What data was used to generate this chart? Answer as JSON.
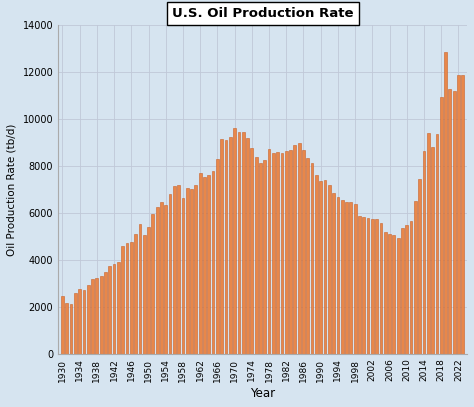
{
  "title": "U.S. Oil Production Rate",
  "xlabel": "Year",
  "ylabel": "Oil Production Rate (tb/d)",
  "bar_color": "#E8874A",
  "edge_color": "#C8622A",
  "bg_color": "#D6E4F0",
  "grid_color": "#C0C8D8",
  "ylim": [
    0,
    14000
  ],
  "yticks": [
    0,
    2000,
    4000,
    6000,
    8000,
    10000,
    12000,
    14000
  ],
  "years": [
    1930,
    1931,
    1932,
    1933,
    1934,
    1935,
    1936,
    1937,
    1938,
    1939,
    1940,
    1941,
    1942,
    1943,
    1944,
    1945,
    1946,
    1947,
    1948,
    1949,
    1950,
    1951,
    1952,
    1953,
    1954,
    1955,
    1956,
    1957,
    1958,
    1959,
    1960,
    1961,
    1962,
    1963,
    1964,
    1965,
    1966,
    1967,
    1968,
    1969,
    1970,
    1971,
    1972,
    1973,
    1974,
    1975,
    1976,
    1977,
    1978,
    1979,
    1980,
    1981,
    1982,
    1983,
    1984,
    1985,
    1986,
    1987,
    1988,
    1989,
    1990,
    1991,
    1992,
    1993,
    1994,
    1995,
    1996,
    1997,
    1998,
    1999,
    2000,
    2001,
    2002,
    2003,
    2004,
    2005,
    2006,
    2007,
    2008,
    2009,
    2010,
    2011,
    2012,
    2013,
    2014,
    2015,
    2016,
    2017,
    2018,
    2019,
    2020,
    2021,
    2022,
    2023
  ],
  "values": [
    2460,
    2139,
    2116,
    2568,
    2750,
    2734,
    2916,
    3201,
    3238,
    3291,
    3497,
    3726,
    3835,
    3922,
    4600,
    4700,
    4745,
    5090,
    5520,
    5046,
    5407,
    5942,
    6260,
    6458,
    6342,
    6806,
    7151,
    7170,
    6643,
    7046,
    7035,
    7185,
    7695,
    7542,
    7614,
    7804,
    8295,
    9151,
    9095,
    9239,
    9637,
    9463,
    9443,
    9208,
    8775,
    8375,
    8132,
    8245,
    8707,
    8552,
    8597,
    8572,
    8649,
    8688,
    8879,
    8971,
    8680,
    8349,
    8140,
    7613,
    7355,
    7417,
    7171,
    6847,
    6662,
    6560,
    6465,
    6452,
    6395,
    5881,
    5822,
    5801,
    5746,
    5746,
    5587,
    5178,
    5102,
    5064,
    4950,
    5361,
    5474,
    5645,
    6497,
    7437,
    8653,
    9415,
    8829,
    9352,
    10961,
    12861,
    11283,
    11185,
    11896,
    11900
  ]
}
